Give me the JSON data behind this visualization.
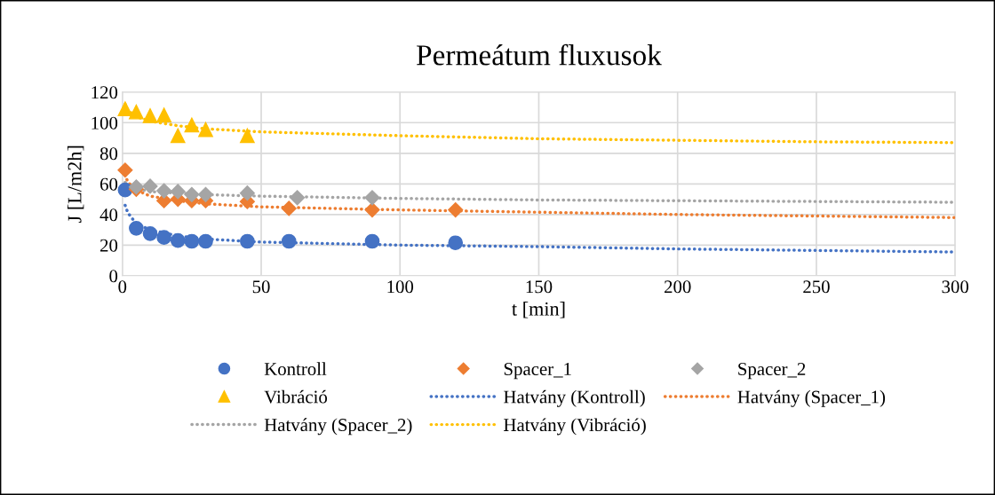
{
  "chart_data": {
    "type": "scatter",
    "title": "Permeátum fluxusok",
    "xlabel": "t [min]",
    "ylabel": "J [L/m2h]",
    "xlim": [
      0,
      300
    ],
    "xticks": [
      0,
      50,
      100,
      150,
      200,
      250,
      300
    ],
    "ylim": [
      0,
      120
    ],
    "yticks": [
      0,
      20,
      40,
      60,
      80,
      100,
      120
    ],
    "grid": true,
    "legend": "bottom",
    "series": [
      {
        "name": "Kontroll",
        "marker": "circle",
        "color": "#4472c4",
        "x": [
          1,
          5,
          10,
          15,
          20,
          25,
          30,
          45,
          60,
          90,
          120
        ],
        "values": [
          56,
          31,
          27.5,
          25,
          23,
          22.5,
          22.5,
          22.5,
          22.5,
          22.5,
          21.5
        ]
      },
      {
        "name": "Spacer_1",
        "marker": "diamond",
        "color": "#ed7d31",
        "x": [
          1,
          5,
          10,
          15,
          20,
          25,
          30,
          45,
          60,
          90,
          120
        ],
        "values": [
          69,
          56.5,
          null,
          49,
          50,
          49,
          49,
          48.5,
          44,
          43,
          43
        ]
      },
      {
        "name": "Spacer_2",
        "marker": "diamond",
        "color": "#a5a5a5",
        "x": [
          5,
          10,
          15,
          20,
          25,
          30,
          45,
          63,
          90
        ],
        "values": [
          58,
          58.5,
          55.5,
          55,
          53,
          53,
          54,
          51,
          51
        ]
      },
      {
        "name": "Vibráció",
        "marker": "triangle",
        "color": "#ffc000",
        "x": [
          1,
          5,
          10,
          15,
          20,
          25,
          30,
          45
        ],
        "values": [
          109,
          107,
          104.5,
          105,
          91.5,
          98.5,
          95.5,
          91.5
        ]
      },
      {
        "name": "Hatvány (Kontroll)",
        "type": "line",
        "line_style": "dotted",
        "color": "#4472c4",
        "x": [
          1,
          2,
          5,
          10,
          20,
          30,
          50,
          100,
          150,
          200,
          250,
          300
        ],
        "values": [
          46,
          41,
          34,
          30,
          26,
          24,
          22,
          20,
          19,
          17.5,
          16.5,
          15.5
        ]
      },
      {
        "name": "Hatvány (Spacer_1)",
        "type": "line",
        "line_style": "dotted",
        "color": "#ed7d31",
        "x": [
          1,
          2,
          5,
          10,
          20,
          30,
          50,
          100,
          150,
          200,
          250,
          300
        ],
        "values": [
          66,
          61,
          56,
          52,
          49,
          47,
          45,
          43,
          41.5,
          40,
          39,
          38
        ]
      },
      {
        "name": "Hatvány (Spacer_2)",
        "type": "line",
        "line_style": "dotted",
        "color": "#a5a5a5",
        "x": [
          1,
          2,
          5,
          10,
          20,
          30,
          50,
          100,
          150,
          200,
          250,
          300
        ],
        "values": [
          61,
          59,
          57,
          55,
          54,
          53,
          52,
          50.5,
          49.5,
          49,
          48.5,
          48
        ]
      },
      {
        "name": "Hatvány (Vibráció)",
        "type": "line",
        "line_style": "dotted",
        "color": "#ffc000",
        "x": [
          1,
          2,
          5,
          10,
          20,
          30,
          50,
          100,
          150,
          200,
          250,
          300
        ],
        "values": [
          112,
          108,
          104,
          101,
          98,
          96,
          94,
          91.5,
          89.5,
          88.5,
          87.5,
          87
        ]
      }
    ]
  }
}
